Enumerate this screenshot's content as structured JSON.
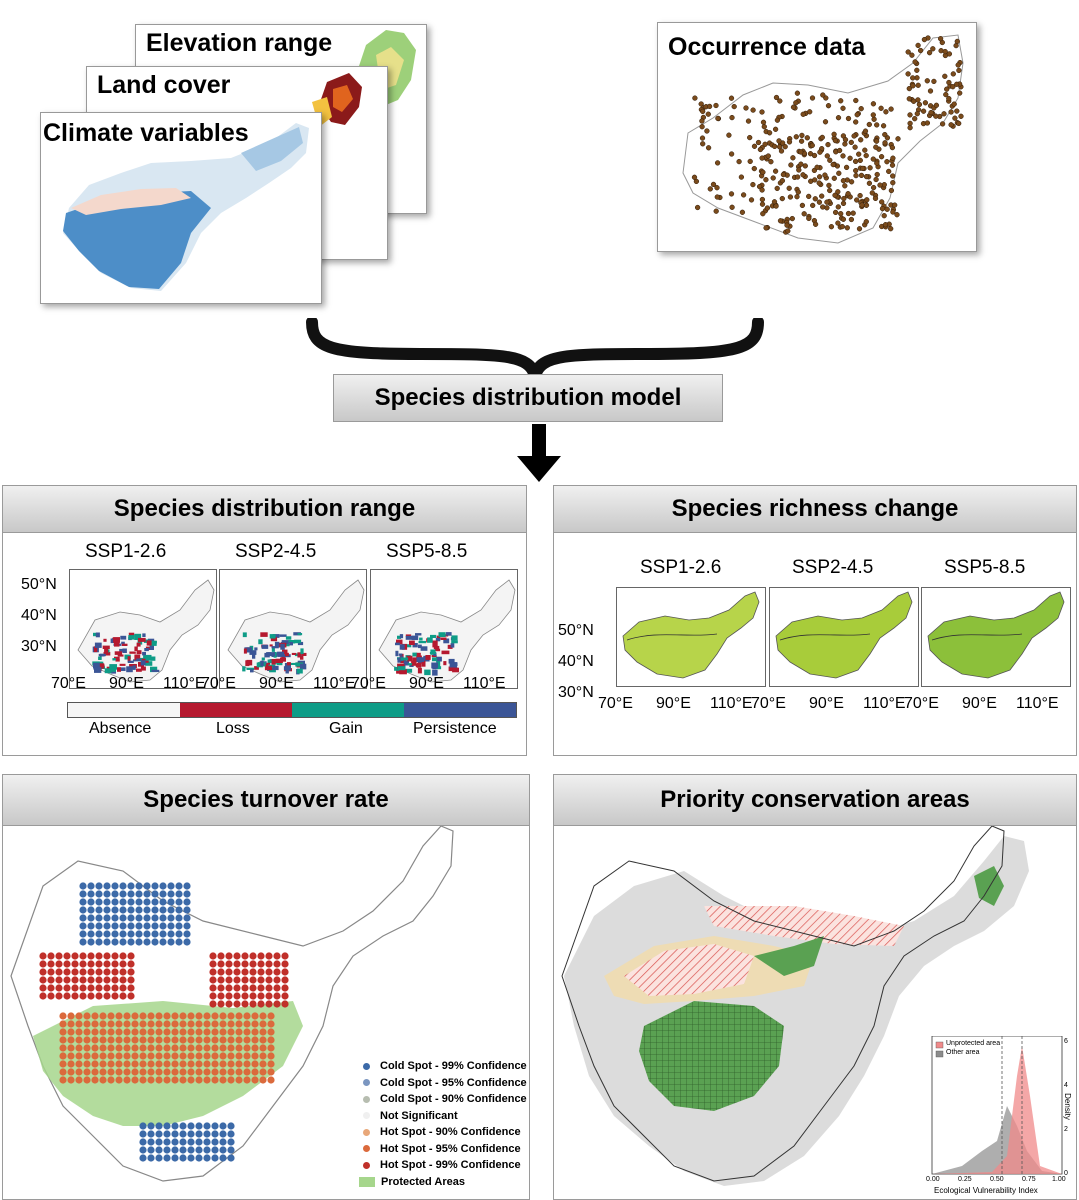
{
  "inputs": {
    "elevation_title": "Elevation range",
    "landcover_title": "Land cover",
    "climate_title": "Climate variables",
    "occurrence_title": "Occurrence data"
  },
  "model": {
    "label": "Species distribution model"
  },
  "distribution": {
    "title": "Species distribution range",
    "scenarios": [
      "SSP1-2.6",
      "SSP2-4.5",
      "SSP5-8.5"
    ],
    "lat_ticks": [
      "50°N",
      "40°N",
      "30°N"
    ],
    "lon_ticks": [
      "70°E",
      "90°E",
      "110°E"
    ],
    "legend": [
      {
        "label": "Absence",
        "color": "#f5f5f5"
      },
      {
        "label": "Loss",
        "color": "#b5192f"
      },
      {
        "label": "Gain",
        "color": "#0e9c87"
      },
      {
        "label": "Persistence",
        "color": "#3b5596"
      }
    ]
  },
  "richness": {
    "title": "Species richness change",
    "scenarios": [
      "SSP1-2.6",
      "SSP2-4.5",
      "SSP5-8.5"
    ],
    "lat_ticks": [
      "50°N",
      "40°N",
      "30°N"
    ],
    "lon_ticks": [
      "70°E",
      "90°E",
      "110°E"
    ]
  },
  "turnover": {
    "title": "Species turnover rate",
    "legend": [
      {
        "label": "Cold Spot - 99% Confidence",
        "color": "#3c6aa8"
      },
      {
        "label": "Cold Spot - 95% Confidence",
        "color": "#7b96c0"
      },
      {
        "label": "Cold Spot - 90% Confidence",
        "color": "#b7bdb0"
      },
      {
        "label": "Not Significant",
        "color": "#f0f0f0"
      },
      {
        "label": "Hot Spot - 90% Confidence",
        "color": "#e8a779"
      },
      {
        "label": "Hot Spot - 95% Confidence",
        "color": "#db6a3c"
      },
      {
        "label": "Hot Spot - 99% Confidence",
        "color": "#c0302a"
      },
      {
        "label": "Protected Areas",
        "color": "#a6d68c"
      }
    ]
  },
  "priority": {
    "title": "Priority conservation areas",
    "inset": {
      "legend": [
        {
          "label": "Unprotected area",
          "color": "#f08a8a"
        },
        {
          "label": "Other area",
          "color": "#8c8c8c"
        }
      ],
      "xlabel": "Ecological Vulnerability Index",
      "ylabel": "Density",
      "x_ticks": [
        "0.00",
        "0.25",
        "0.50",
        "0.75",
        "1.00"
      ],
      "y_ticks": [
        "6",
        "4",
        "2",
        "0"
      ]
    }
  }
}
